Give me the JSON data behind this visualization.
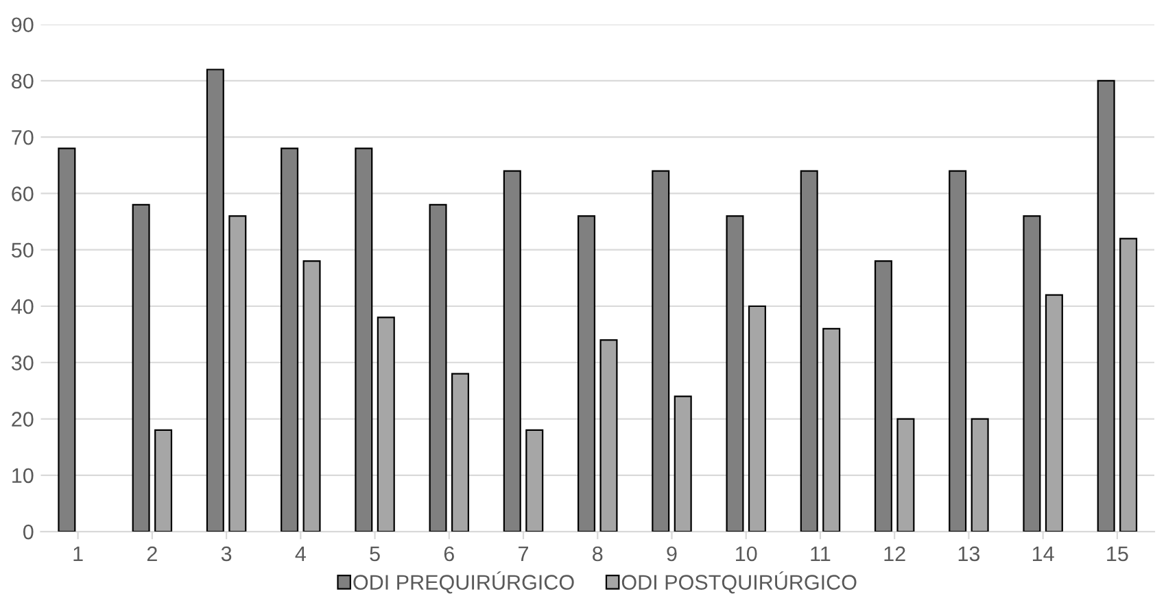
{
  "chart_data": {
    "type": "bar",
    "categories": [
      "1",
      "2",
      "3",
      "4",
      "5",
      "6",
      "7",
      "8",
      "9",
      "10",
      "11",
      "12",
      "13",
      "14",
      "15"
    ],
    "series": [
      {
        "name": "ODI PREQUIRÚRGICO",
        "color": "#808080",
        "values": [
          68,
          58,
          82,
          68,
          68,
          58,
          64,
          56,
          64,
          56,
          64,
          48,
          64,
          56,
          80
        ]
      },
      {
        "name": "ODI POSTQUIRÚRGICO",
        "color": "#a6a6a6",
        "values": [
          null,
          18,
          56,
          48,
          38,
          28,
          18,
          34,
          24,
          40,
          36,
          20,
          20,
          42,
          52
        ]
      }
    ],
    "ylim": [
      0,
      90
    ],
    "yticks": [
      0,
      10,
      20,
      30,
      40,
      50,
      60,
      70,
      80,
      90
    ],
    "grid": "y",
    "legend": "bottom"
  }
}
